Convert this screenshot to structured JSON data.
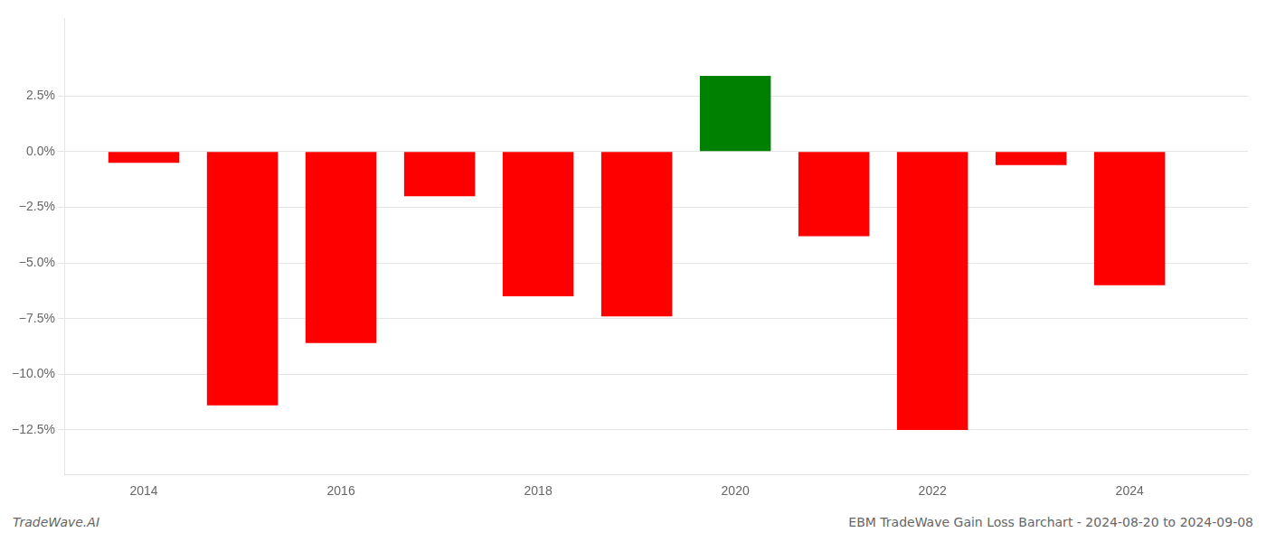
{
  "chart_data": {
    "type": "bar",
    "x": [
      2014,
      2015,
      2016,
      2017,
      2018,
      2019,
      2020,
      2021,
      2022,
      2023,
      2024
    ],
    "values": [
      -0.005,
      -0.114,
      -0.086,
      -0.02,
      -0.065,
      -0.074,
      0.034,
      -0.038,
      -0.125,
      -0.006,
      -0.06
    ],
    "colors": [
      "#ff0000",
      "#ff0000",
      "#ff0000",
      "#ff0000",
      "#ff0000",
      "#ff0000",
      "#008000",
      "#ff0000",
      "#ff0000",
      "#ff0000",
      "#ff0000"
    ],
    "xlim": [
      2013.2,
      2025.2
    ],
    "xticks": [
      2014,
      2016,
      2018,
      2020,
      2022,
      2024
    ],
    "ylim": [
      -0.145,
      0.06
    ],
    "yticks": [
      {
        "value": 0.025,
        "label": "2.5%"
      },
      {
        "value": 0.0,
        "label": "0.0%"
      },
      {
        "value": -0.025,
        "label": "−2.5%"
      },
      {
        "value": -0.05,
        "label": "−5.0%"
      },
      {
        "value": -0.075,
        "label": "−7.5%"
      },
      {
        "value": -0.1,
        "label": "−10.0%"
      },
      {
        "value": -0.125,
        "label": "−12.5%"
      }
    ],
    "grid": true,
    "annotations": [
      "TradeWave.AI",
      "EBM TradeWave Gain Loss Barchart - 2024-08-20 to 2024-09-08"
    ]
  }
}
